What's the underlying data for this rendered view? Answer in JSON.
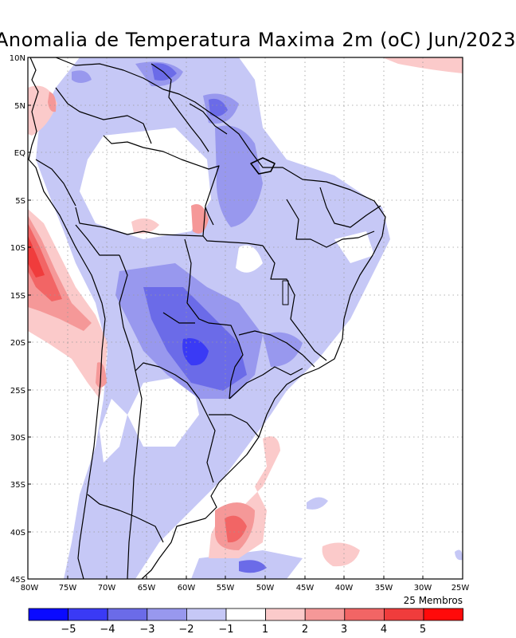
{
  "title": "Anomalia de Temperatura Maxima 2m (oC) Jun/2023",
  "footnote": "25 Membros",
  "lat_labels": [
    "10N",
    "5N",
    "EQ",
    "5S",
    "10S",
    "15S",
    "20S",
    "25S",
    "30S",
    "35S",
    "40S",
    "45S"
  ],
  "lon_labels": [
    "80W",
    "75W",
    "70W",
    "65W",
    "60W",
    "55W",
    "50W",
    "45W",
    "40W",
    "35W",
    "30W",
    "25W"
  ],
  "colorbar": {
    "labels": [
      "−5",
      "−4",
      "−3",
      "−2",
      "−1",
      "1",
      "2",
      "3",
      "4",
      "5"
    ],
    "colors": [
      "#0a0aff",
      "#3a3af5",
      "#6b6be8",
      "#9898ee",
      "#c6c8f6",
      "#ffffff",
      "#fbcaca",
      "#f59898",
      "#f26565",
      "#f03c3c",
      "#ff0a0a"
    ]
  }
}
